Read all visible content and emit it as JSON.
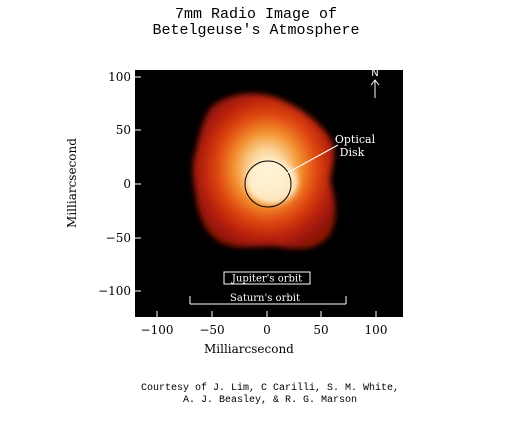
{
  "title": {
    "line1": "7mm Radio Image of",
    "line2": "Betelgeuse's Atmosphere"
  },
  "axes": {
    "xlabel": "Milliarcsecond",
    "ylabel": "Milliarcsecond",
    "xticks": [
      "−100",
      "−50",
      "0",
      "50",
      "100"
    ],
    "yticks": [
      "100",
      "50",
      "0",
      "−50",
      "−100"
    ]
  },
  "annotations": {
    "north": "N",
    "optical_line1": "Optical",
    "optical_line2": "Disk",
    "jupiter": "Jupiter's orbit",
    "saturn": "Saturn's orbit"
  },
  "credit": {
    "line1": "Courtesy of J. Lim, C Carilli, S. M. White,",
    "line2": "A. J. Beasley, & R. G. Marson"
  },
  "colors": {
    "background": "#000000",
    "halo": "#b4180a",
    "core": "#fff0c8"
  }
}
